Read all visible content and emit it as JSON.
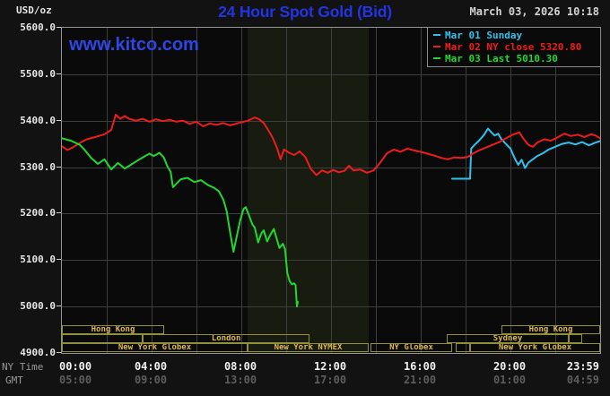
{
  "header": {
    "unit": "USD/oz",
    "title": "24 Hour Spot Gold (Bid)",
    "datetime": "March 03, 2026 10:18"
  },
  "watermark": "www.kitco.com",
  "legend": {
    "items": [
      {
        "label": "Mar 01 Sunday",
        "color": "#2fc2ef"
      },
      {
        "label": "Mar 02 NY close 5320.80",
        "color": "#ee1c1c"
      },
      {
        "label": "Mar 03 Last 5010.30",
        "color": "#21d82f"
      }
    ]
  },
  "axes": {
    "y_ticks": [
      {
        "v": 5600,
        "text": "5600.0"
      },
      {
        "v": 5500,
        "text": "5500.0"
      },
      {
        "v": 5400,
        "text": "5400.0"
      },
      {
        "v": 5300,
        "text": "5300.0"
      },
      {
        "v": 5200,
        "text": "5200.0"
      },
      {
        "v": 5100,
        "text": "5100.0"
      },
      {
        "v": 5000,
        "text": "5000.0"
      },
      {
        "v": 4900,
        "text": "4900.0"
      }
    ],
    "x_ny": {
      "label": "NY Time",
      "ticks": [
        {
          "t": 0,
          "text": "00:00"
        },
        {
          "t": 4,
          "text": "04:00"
        },
        {
          "t": 8,
          "text": "08:00"
        },
        {
          "t": 12,
          "text": "12:00"
        },
        {
          "t": 16,
          "text": "16:00"
        },
        {
          "t": 20,
          "text": "20:00"
        },
        {
          "t": 24,
          "text": "23:59"
        }
      ]
    },
    "x_gmt": {
      "label": "GMT",
      "ticks": [
        {
          "t": 0,
          "text": "05:00"
        },
        {
          "t": 4,
          "text": "09:00"
        },
        {
          "t": 8,
          "text": "13:00"
        },
        {
          "t": 12,
          "text": "17:00"
        },
        {
          "t": 16,
          "text": "21:00"
        },
        {
          "t": 20,
          "text": "01:00"
        },
        {
          "t": 24,
          "text": "04:59"
        }
      ]
    }
  },
  "band": {
    "start": 8.28,
    "end": 13.68
  },
  "sessions": {
    "rows": [
      [
        {
          "label": "Hong Kong",
          "start": 0,
          "end": 4.56
        },
        {
          "label": "Hong Kong",
          "start": 19.6,
          "end": 24
        }
      ],
      [
        {
          "label": "",
          "start": 0,
          "end": 3.6
        },
        {
          "label": "London",
          "start": 3.6,
          "end": 11.05
        },
        {
          "label": "Sydney",
          "start": 17.16,
          "end": 22.6
        },
        {
          "label": "",
          "start": 22.6,
          "end": 23.2
        }
      ],
      [
        {
          "label": "New York Globex",
          "start": 0,
          "end": 8.28
        },
        {
          "label": "New York NYMEX",
          "start": 8.28,
          "end": 13.68
        },
        {
          "label": "NY Globex",
          "start": 13.76,
          "end": 17.4
        },
        {
          "label": "",
          "start": 17.55,
          "end": 18.2
        },
        {
          "label": "New York Globex",
          "start": 18.2,
          "end": 24
        }
      ]
    ]
  },
  "chart_data": {
    "type": "line",
    "title": "24 Hour Spot Gold (Bid)",
    "ylabel": "USD/oz",
    "x_unit": "hours, NY time",
    "x_range": [
      0,
      24
    ],
    "y_range": [
      4900,
      5600
    ],
    "grid": true,
    "legend_position": "top-right",
    "series": [
      {
        "name": "Mar 01 Sunday",
        "color": "#2fc2ef",
        "points": [
          [
            17.4,
            5275
          ],
          [
            18.2,
            5275
          ],
          [
            18.25,
            5340
          ],
          [
            18.4,
            5348
          ],
          [
            18.6,
            5357
          ],
          [
            18.8,
            5368
          ],
          [
            19.0,
            5383
          ],
          [
            19.15,
            5375
          ],
          [
            19.3,
            5368
          ],
          [
            19.45,
            5372
          ],
          [
            19.6,
            5360
          ],
          [
            19.8,
            5350
          ],
          [
            20.0,
            5340
          ],
          [
            20.2,
            5318
          ],
          [
            20.35,
            5305
          ],
          [
            20.5,
            5316
          ],
          [
            20.65,
            5298
          ],
          [
            20.8,
            5310
          ],
          [
            21.0,
            5317
          ],
          [
            21.2,
            5324
          ],
          [
            21.45,
            5330
          ],
          [
            21.7,
            5338
          ],
          [
            22.0,
            5344
          ],
          [
            22.3,
            5350
          ],
          [
            22.6,
            5353
          ],
          [
            22.9,
            5349
          ],
          [
            23.2,
            5354
          ],
          [
            23.5,
            5347
          ],
          [
            23.75,
            5352
          ],
          [
            24.0,
            5356
          ]
        ]
      },
      {
        "name": "Mar 02 NY close 5320.80",
        "color": "#ee1c1c",
        "points": [
          [
            0,
            5345
          ],
          [
            0.25,
            5337
          ],
          [
            0.5,
            5343
          ],
          [
            0.8,
            5352
          ],
          [
            1.1,
            5360
          ],
          [
            1.5,
            5365
          ],
          [
            1.9,
            5371
          ],
          [
            2.2,
            5380
          ],
          [
            2.4,
            5413
          ],
          [
            2.6,
            5404
          ],
          [
            2.8,
            5410
          ],
          [
            3.0,
            5404
          ],
          [
            3.3,
            5400
          ],
          [
            3.6,
            5404
          ],
          [
            3.9,
            5398
          ],
          [
            4.2,
            5403
          ],
          [
            4.5,
            5399
          ],
          [
            4.8,
            5402
          ],
          [
            5.1,
            5398
          ],
          [
            5.4,
            5400
          ],
          [
            5.7,
            5393
          ],
          [
            6.0,
            5398
          ],
          [
            6.3,
            5388
          ],
          [
            6.6,
            5394
          ],
          [
            6.9,
            5391
          ],
          [
            7.2,
            5395
          ],
          [
            7.5,
            5390
          ],
          [
            7.8,
            5394
          ],
          [
            8.1,
            5398
          ],
          [
            8.3,
            5400
          ],
          [
            8.6,
            5407
          ],
          [
            8.8,
            5403
          ],
          [
            9.0,
            5395
          ],
          [
            9.2,
            5380
          ],
          [
            9.4,
            5363
          ],
          [
            9.6,
            5340
          ],
          [
            9.75,
            5317
          ],
          [
            9.9,
            5338
          ],
          [
            10.1,
            5332
          ],
          [
            10.35,
            5326
          ],
          [
            10.6,
            5334
          ],
          [
            10.85,
            5322
          ],
          [
            11.1,
            5296
          ],
          [
            11.35,
            5283
          ],
          [
            11.6,
            5293
          ],
          [
            11.85,
            5288
          ],
          [
            12.1,
            5294
          ],
          [
            12.35,
            5289
          ],
          [
            12.6,
            5292
          ],
          [
            12.8,
            5303
          ],
          [
            13.0,
            5293
          ],
          [
            13.3,
            5295
          ],
          [
            13.6,
            5288
          ],
          [
            13.9,
            5293
          ],
          [
            14.2,
            5310
          ],
          [
            14.5,
            5330
          ],
          [
            14.8,
            5338
          ],
          [
            15.1,
            5333
          ],
          [
            15.4,
            5340
          ],
          [
            15.7,
            5336
          ],
          [
            16.0,
            5333
          ],
          [
            16.3,
            5329
          ],
          [
            16.6,
            5325
          ],
          [
            16.9,
            5320
          ],
          [
            17.2,
            5317
          ],
          [
            17.5,
            5321
          ],
          [
            17.8,
            5320
          ],
          [
            18.1,
            5322
          ],
          [
            18.35,
            5330
          ],
          [
            18.6,
            5336
          ],
          [
            18.9,
            5342
          ],
          [
            19.2,
            5348
          ],
          [
            19.5,
            5354
          ],
          [
            19.8,
            5362
          ],
          [
            20.1,
            5370
          ],
          [
            20.4,
            5375
          ],
          [
            20.6,
            5360
          ],
          [
            20.8,
            5348
          ],
          [
            21.0,
            5344
          ],
          [
            21.2,
            5353
          ],
          [
            21.5,
            5360
          ],
          [
            21.8,
            5357
          ],
          [
            22.1,
            5364
          ],
          [
            22.4,
            5372
          ],
          [
            22.7,
            5367
          ],
          [
            23.0,
            5370
          ],
          [
            23.3,
            5365
          ],
          [
            23.6,
            5371
          ],
          [
            23.8,
            5368
          ],
          [
            24,
            5362
          ]
        ]
      },
      {
        "name": "Mar 03 Last 5010.30",
        "color": "#21d82f",
        "points": [
          [
            0,
            5362
          ],
          [
            0.4,
            5357
          ],
          [
            0.8,
            5348
          ],
          [
            1.0,
            5338
          ],
          [
            1.3,
            5320
          ],
          [
            1.6,
            5307
          ],
          [
            1.9,
            5317
          ],
          [
            2.2,
            5295
          ],
          [
            2.5,
            5309
          ],
          [
            2.8,
            5297
          ],
          [
            3.1,
            5306
          ],
          [
            3.5,
            5318
          ],
          [
            3.9,
            5329
          ],
          [
            4.1,
            5324
          ],
          [
            4.35,
            5331
          ],
          [
            4.55,
            5320
          ],
          [
            4.7,
            5302
          ],
          [
            4.85,
            5290
          ],
          [
            4.95,
            5257
          ],
          [
            5.1,
            5264
          ],
          [
            5.3,
            5274
          ],
          [
            5.6,
            5277
          ],
          [
            5.9,
            5268
          ],
          [
            6.2,
            5272
          ],
          [
            6.5,
            5262
          ],
          [
            6.8,
            5255
          ],
          [
            7.0,
            5248
          ],
          [
            7.2,
            5230
          ],
          [
            7.35,
            5205
          ],
          [
            7.5,
            5160
          ],
          [
            7.65,
            5118
          ],
          [
            7.8,
            5152
          ],
          [
            7.95,
            5186
          ],
          [
            8.1,
            5210
          ],
          [
            8.2,
            5214
          ],
          [
            8.35,
            5195
          ],
          [
            8.5,
            5176
          ],
          [
            8.6,
            5170
          ],
          [
            8.75,
            5138
          ],
          [
            8.9,
            5158
          ],
          [
            9.0,
            5164
          ],
          [
            9.15,
            5140
          ],
          [
            9.3,
            5155
          ],
          [
            9.45,
            5167
          ],
          [
            9.55,
            5150
          ],
          [
            9.7,
            5126
          ],
          [
            9.85,
            5135
          ],
          [
            9.95,
            5124
          ],
          [
            10.05,
            5072
          ],
          [
            10.15,
            5055
          ],
          [
            10.25,
            5048
          ],
          [
            10.35,
            5050
          ],
          [
            10.42,
            5046
          ],
          [
            10.48,
            5000
          ],
          [
            10.52,
            5010
          ]
        ]
      }
    ]
  }
}
